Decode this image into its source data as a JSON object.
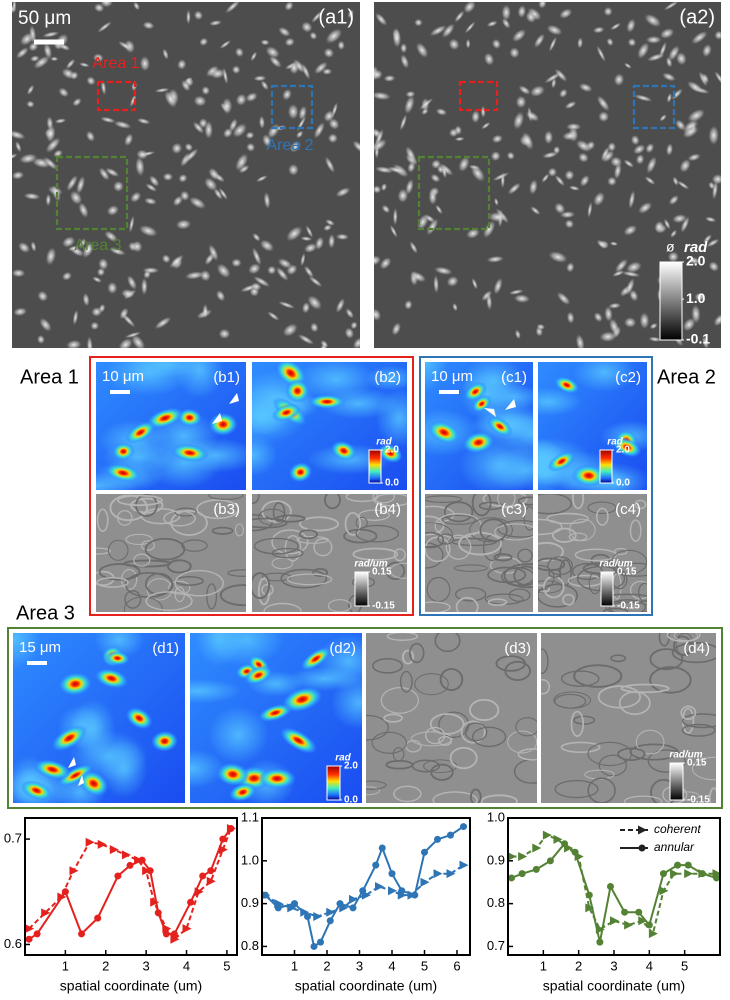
{
  "areas": [
    "Area 1",
    "Area 2",
    "Area 3"
  ],
  "panels": {
    "a1": {
      "label": "(a1)",
      "scale_bar": "50 μm"
    },
    "a2": {
      "label": "(a2)",
      "colorbar": {
        "symbol": "ø",
        "unit": "rad",
        "ticks": [
          {
            "value": 2,
            "label": "2.0"
          },
          {
            "value": 1,
            "label": "1.0"
          },
          -0.1
        ]
      }
    },
    "b1": {
      "label": "(b1)",
      "scale_bar": "10 μm"
    },
    "b2": {
      "label": "(b2)",
      "colorbar": {
        "unit": "rad",
        "ticks": [
          {
            "value": 2,
            "label": "2.0"
          },
          {
            "value": 0,
            "label": "0.0"
          }
        ]
      }
    },
    "b3": {
      "label": "(b3)"
    },
    "b4": {
      "label": "(b4)",
      "colorbar": {
        "unit": "rad/um",
        "ticks": [
          0.15,
          -0.15
        ]
      }
    },
    "c1": {
      "label": "(c1)",
      "scale_bar": "10 μm"
    },
    "c2": {
      "label": "(c2)",
      "colorbar": {
        "unit": "rad",
        "ticks": [
          {
            "value": 2,
            "label": "2.0"
          },
          {
            "value": 0,
            "label": "0.0"
          }
        ]
      }
    },
    "c3": {
      "label": "(c3)"
    },
    "c4": {
      "label": "(c4)",
      "colorbar": {
        "unit": "rad/um",
        "ticks": [
          0.15,
          -0.15
        ]
      }
    },
    "d1": {
      "label": "(d1)",
      "scale_bar": "15 μm"
    },
    "d2": {
      "label": "(d2)",
      "colorbar": {
        "unit": "rad",
        "ticks": [
          {
            "value": 2,
            "label": "2.0"
          },
          {
            "value": 0,
            "label": "0.0"
          }
        ]
      }
    },
    "d3": {
      "label": "(d3)"
    },
    "d4": {
      "label": "(d4)",
      "colorbar": {
        "unit": "rad/um",
        "ticks": [
          0.15,
          -0.15
        ]
      }
    }
  },
  "chart_data": [
    {
      "type": "line",
      "x_label": "spatial coordinate (um)",
      "xlim": [
        0,
        5.25
      ],
      "xticks": [
        1,
        2,
        3,
        4,
        5
      ],
      "ylim": [
        0.59,
        0.72
      ],
      "yticks": [
        0.6,
        0.7
      ],
      "series": [
        {
          "color": "#e5211e",
          "marker": "triangle",
          "line_style": "dashed",
          "x": [
            0.1,
            0.5,
            0.9,
            1.2,
            1.6,
            1.9,
            2.2,
            2.5,
            2.8,
            3.0,
            3.2,
            3.5,
            3.7,
            4.0,
            4.3,
            4.6,
            4.9,
            5.1
          ],
          "values": [
            0.615,
            0.63,
            0.645,
            0.67,
            0.697,
            0.695,
            0.69,
            0.685,
            0.68,
            0.67,
            0.64,
            0.615,
            0.605,
            0.615,
            0.65,
            0.66,
            0.69,
            0.71
          ]
        },
        {
          "color": "#e5211e",
          "marker": "circle",
          "line_style": "solid",
          "x": [
            0.1,
            0.3,
            1.0,
            1.4,
            1.8,
            2.3,
            2.6,
            2.9,
            3.1,
            3.3,
            3.5,
            3.7,
            4.1,
            4.4,
            4.6,
            4.9,
            5.1
          ],
          "values": [
            0.605,
            0.61,
            0.65,
            0.61,
            0.625,
            0.665,
            0.675,
            0.68,
            0.67,
            0.63,
            0.61,
            0.61,
            0.64,
            0.665,
            0.67,
            0.7,
            0.71
          ]
        }
      ]
    },
    {
      "type": "line",
      "x_label": "spatial coordinate (um)",
      "xlim": [
        0,
        6.4
      ],
      "xticks": [
        1,
        2,
        3,
        4,
        5,
        6
      ],
      "ylim": [
        0.78,
        1.1
      ],
      "yticks": [
        0.8,
        0.9,
        {
          "value": 1,
          "label": "1.0"
        },
        1.1
      ],
      "series": [
        {
          "color": "#2e75b6",
          "marker": "triangle",
          "line_style": "dashed",
          "x": [
            0.1,
            0.5,
            0.9,
            1.3,
            1.7,
            2.1,
            2.5,
            2.8,
            3.2,
            3.6,
            4.0,
            4.3,
            4.6,
            5.0,
            5.4,
            5.8,
            6.2
          ],
          "values": [
            0.92,
            0.9,
            0.89,
            0.88,
            0.87,
            0.88,
            0.89,
            0.91,
            0.92,
            0.94,
            0.93,
            0.92,
            0.92,
            0.95,
            0.97,
            0.97,
            0.99
          ]
        },
        {
          "color": "#2e75b6",
          "marker": "circle",
          "line_style": "solid",
          "x": [
            0.1,
            0.5,
            1.0,
            1.4,
            1.6,
            1.8,
            2.1,
            2.4,
            2.8,
            3.1,
            3.5,
            3.7,
            4.0,
            4.3,
            4.7,
            5.0,
            5.4,
            5.8,
            6.2
          ],
          "values": [
            0.92,
            0.89,
            0.9,
            0.87,
            0.8,
            0.81,
            0.86,
            0.9,
            0.89,
            0.93,
            0.99,
            1.03,
            0.97,
            0.93,
            0.92,
            1.02,
            1.05,
            1.06,
            1.08
          ]
        }
      ]
    },
    {
      "type": "line",
      "x_label": "spatial coordinate (um)",
      "legend": "upper right",
      "xlim": [
        0,
        6.0
      ],
      "xticks": [
        1,
        2,
        3,
        4,
        5
      ],
      "ylim": [
        0.68,
        1.0
      ],
      "yticks": [
        0.7,
        0.8,
        0.9,
        {
          "value": 1,
          "label": "1.0"
        }
      ],
      "series": [
        {
          "name": "coherent",
          "color": "#548235",
          "marker": "triangle",
          "line_style": "dashed",
          "x": [
            0.1,
            0.4,
            0.8,
            1.1,
            1.4,
            1.7,
            2.0,
            2.3,
            2.6,
            3.0,
            3.4,
            3.8,
            4.1,
            4.4,
            4.7,
            5.1,
            5.5,
            5.9
          ],
          "values": [
            0.91,
            0.91,
            0.93,
            0.96,
            0.95,
            0.93,
            0.91,
            0.79,
            0.74,
            0.76,
            0.75,
            0.76,
            0.73,
            0.83,
            0.87,
            0.87,
            0.87,
            0.87
          ]
        },
        {
          "name": "annular",
          "color": "#548235",
          "marker": "circle",
          "line_style": "solid",
          "x": [
            0.1,
            0.4,
            0.8,
            1.2,
            1.6,
            1.9,
            2.3,
            2.6,
            2.9,
            3.3,
            3.7,
            4.0,
            4.4,
            4.8,
            5.1,
            5.5,
            5.9
          ],
          "values": [
            0.86,
            0.87,
            0.88,
            0.9,
            0.94,
            0.92,
            0.82,
            0.71,
            0.84,
            0.78,
            0.78,
            0.75,
            0.87,
            0.89,
            0.89,
            0.87,
            0.86
          ]
        }
      ]
    }
  ]
}
